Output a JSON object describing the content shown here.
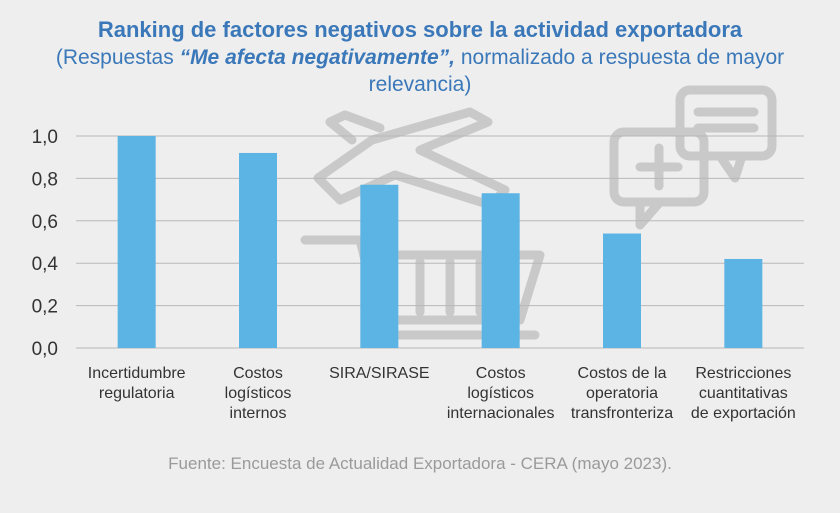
{
  "title": "Ranking de factores negativos sobre la actividad exportadora",
  "subtitle": {
    "before": "(Respuestas ",
    "emphasis": "“Me afecta negativamente”,",
    "after": " normalizado a respuesta de mayor relevancia)"
  },
  "source": "Fuente: Encuesta de Actualidad Exportadora - CERA (mayo 2023).",
  "colors": {
    "bar": "#5bb4e3",
    "title": "#3a78b9",
    "grid": "#b8b8b8",
    "background": "#eeeeee",
    "watermark": "#c9c9c9"
  },
  "watermark_icons": [
    "airplane-icon",
    "cart-icon",
    "chat-bubbles-icon"
  ],
  "chart_data": {
    "type": "bar",
    "categories": [
      [
        "Incertidumbre",
        "regulatoria"
      ],
      [
        "Costos",
        "logísticos",
        "internos"
      ],
      [
        "SIRA/SIRASE"
      ],
      [
        "Costos",
        "logísticos",
        "internacionales"
      ],
      [
        "Costos de la",
        "operatoria",
        "transfronteriza"
      ],
      [
        "Restricciones",
        "cuantitativas",
        "de exportación"
      ]
    ],
    "values": [
      1.0,
      0.92,
      0.77,
      0.73,
      0.54,
      0.42
    ],
    "ylim": [
      0,
      1
    ],
    "yticks": [
      0,
      0.2,
      0.4,
      0.6,
      0.8,
      1.0
    ],
    "ytick_labels": [
      "0,0",
      "0,2",
      "0,4",
      "0,6",
      "0,8",
      "1,0"
    ],
    "grid": true,
    "legend": "none"
  }
}
